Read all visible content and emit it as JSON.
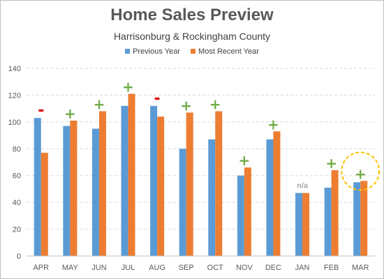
{
  "chart_data": {
    "type": "bar",
    "title": "Home Sales Preview",
    "subtitle": "Harrisonburg & Rockingham County",
    "categories": [
      "APR",
      "MAY",
      "JUN",
      "JUL",
      "AUG",
      "SEP",
      "OCT",
      "NOV",
      "DEC",
      "JAN",
      "FEB",
      "MAR"
    ],
    "series": [
      {
        "name": "Previous Year",
        "color": "#5b9bd5",
        "values": [
          103,
          97,
          95,
          112,
          112,
          80,
          87,
          60,
          87,
          47,
          51,
          55
        ]
      },
      {
        "name": "Most Recent Year",
        "color": "#ed7d31",
        "values": [
          77,
          101,
          108,
          121,
          104,
          107,
          108,
          66,
          93,
          47,
          64,
          56
        ]
      }
    ],
    "change_markers": [
      "-",
      "+",
      "+",
      "+",
      "-",
      "+",
      "+",
      "+",
      "+",
      "",
      "+",
      "+"
    ],
    "change_marker_colors": {
      "up": "#70ad47",
      "down": "#e00000"
    },
    "annotations": [
      {
        "category": "JAN",
        "text": "n/a"
      },
      {
        "category": "MAR",
        "shape": "dashed-circle",
        "color": "#ffc000"
      }
    ],
    "xlabel": "",
    "ylabel": "",
    "ylim": [
      0,
      140
    ],
    "yticks": [
      0,
      20,
      40,
      60,
      80,
      100,
      120,
      140
    ],
    "grid": true,
    "legend_position": "top"
  }
}
